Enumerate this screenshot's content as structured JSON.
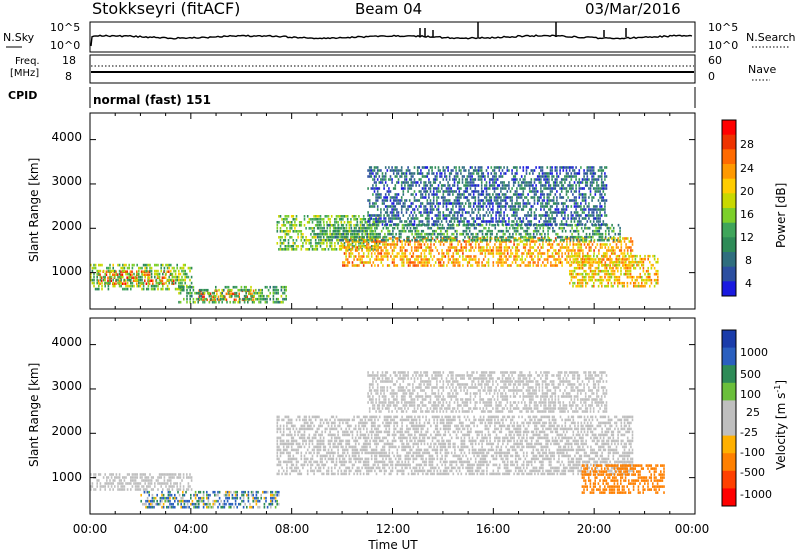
{
  "header": {
    "station": "Stokkseyri (fitACF)",
    "beam": "Beam 04",
    "date": "03/Mar/2016"
  },
  "nsky_panel": {
    "left_label": "N.Sky",
    "left_ticks": [
      "10^5",
      "10^0"
    ],
    "right_ticks": [
      "10^5",
      "10^0"
    ],
    "right_label": "N.Search"
  },
  "freq_panel": {
    "left_label_line1": "Freq.",
    "left_label_line2": "[MHz]",
    "left_ticks": [
      "18",
      "8"
    ],
    "right_ticks": [
      "60",
      "0"
    ],
    "right_label": "Nave"
  },
  "cpid": {
    "label": "CPID",
    "value": "normal (fast) 151"
  },
  "x_axis": {
    "title": "Time UT",
    "ticks": [
      "00:00",
      "04:00",
      "08:00",
      "12:00",
      "16:00",
      "20:00",
      "00:00"
    ]
  },
  "y_axis": {
    "title": "Slant Range [km]",
    "ticks": [
      "4000",
      "3000",
      "2000",
      "1000"
    ]
  },
  "power_colorbar": {
    "title": "Power [dB]",
    "ticks": [
      "28",
      "24",
      "20",
      "16",
      "12",
      "8",
      "4"
    ],
    "colors": [
      "#ff0000",
      "#ee3300",
      "#ff6a00",
      "#ff9900",
      "#ffcc00",
      "#c8d800",
      "#7ccf2a",
      "#3fa55a",
      "#2e8b57",
      "#2f6e7e",
      "#2c4fa0",
      "#1a1ae0"
    ]
  },
  "velocity_colorbar": {
    "title_main": "Velocity",
    "title_unit": "[m s",
    "title_exp": "-1",
    "title_close": "]",
    "ticks": [
      "1000",
      "500",
      "100",
      "25",
      "-25",
      "-100",
      "-500",
      "-1000"
    ],
    "colors": [
      "#1a3caa",
      "#2a5fbf",
      "#2e8b57",
      "#6bbf3b",
      "#bfbfbf",
      "#bfbfbf",
      "#ffb000",
      "#ff8000",
      "#ff4000",
      "#ff0000"
    ]
  },
  "chart_data": {
    "type": "heatmap",
    "title": "Stokkseyri (fitACF)",
    "xlabel": "Time UT",
    "ylabel": "Slant Range [km]",
    "xlim_hours": [
      0,
      24
    ],
    "ylim_km": [
      180,
      4600
    ],
    "panels": [
      {
        "name": "Power [dB]",
        "colorbar_range": [
          0,
          32
        ],
        "regions": [
          {
            "t_start": 0.3,
            "t_end": 3.3,
            "r_min": 750,
            "r_max": 1050,
            "level": 26
          },
          {
            "t_start": 0.0,
            "t_end": 4.0,
            "r_min": 600,
            "r_max": 1200,
            "level": 14
          },
          {
            "t_start": 4.3,
            "t_end": 6.5,
            "r_min": 400,
            "r_max": 620,
            "level": 26
          },
          {
            "t_start": 3.5,
            "t_end": 7.8,
            "r_min": 300,
            "r_max": 700,
            "level": 12
          },
          {
            "t_start": 7.4,
            "t_end": 11.5,
            "r_min": 1500,
            "r_max": 2300,
            "level": 14
          },
          {
            "t_start": 10.0,
            "t_end": 21.5,
            "r_min": 1150,
            "r_max": 1800,
            "level": 22
          },
          {
            "t_start": 9.0,
            "t_end": 21.0,
            "r_min": 1700,
            "r_max": 2100,
            "level": 10
          },
          {
            "t_start": 19.0,
            "t_end": 22.5,
            "r_min": 700,
            "r_max": 1400,
            "level": 20
          },
          {
            "t_start": 11.0,
            "t_end": 20.5,
            "r_min": 2100,
            "r_max": 3400,
            "level": 6
          }
        ]
      },
      {
        "name": "Velocity [m s-1]",
        "colorbar_range": [
          -1000,
          1000
        ],
        "regions": [
          {
            "t_start": 0.0,
            "t_end": 4.0,
            "r_min": 700,
            "r_max": 1100,
            "velocity": 0
          },
          {
            "t_start": 2.0,
            "t_end": 7.5,
            "r_min": 300,
            "r_max": 700,
            "velocity": 80
          },
          {
            "t_start": 7.4,
            "t_end": 21.5,
            "r_min": 1100,
            "r_max": 2400,
            "velocity": 0
          },
          {
            "t_start": 11.0,
            "t_end": 20.5,
            "r_min": 2500,
            "r_max": 3400,
            "velocity": 0
          },
          {
            "t_start": 19.5,
            "t_end": 22.8,
            "r_min": 650,
            "r_max": 1300,
            "velocity": -300
          }
        ]
      }
    ]
  }
}
